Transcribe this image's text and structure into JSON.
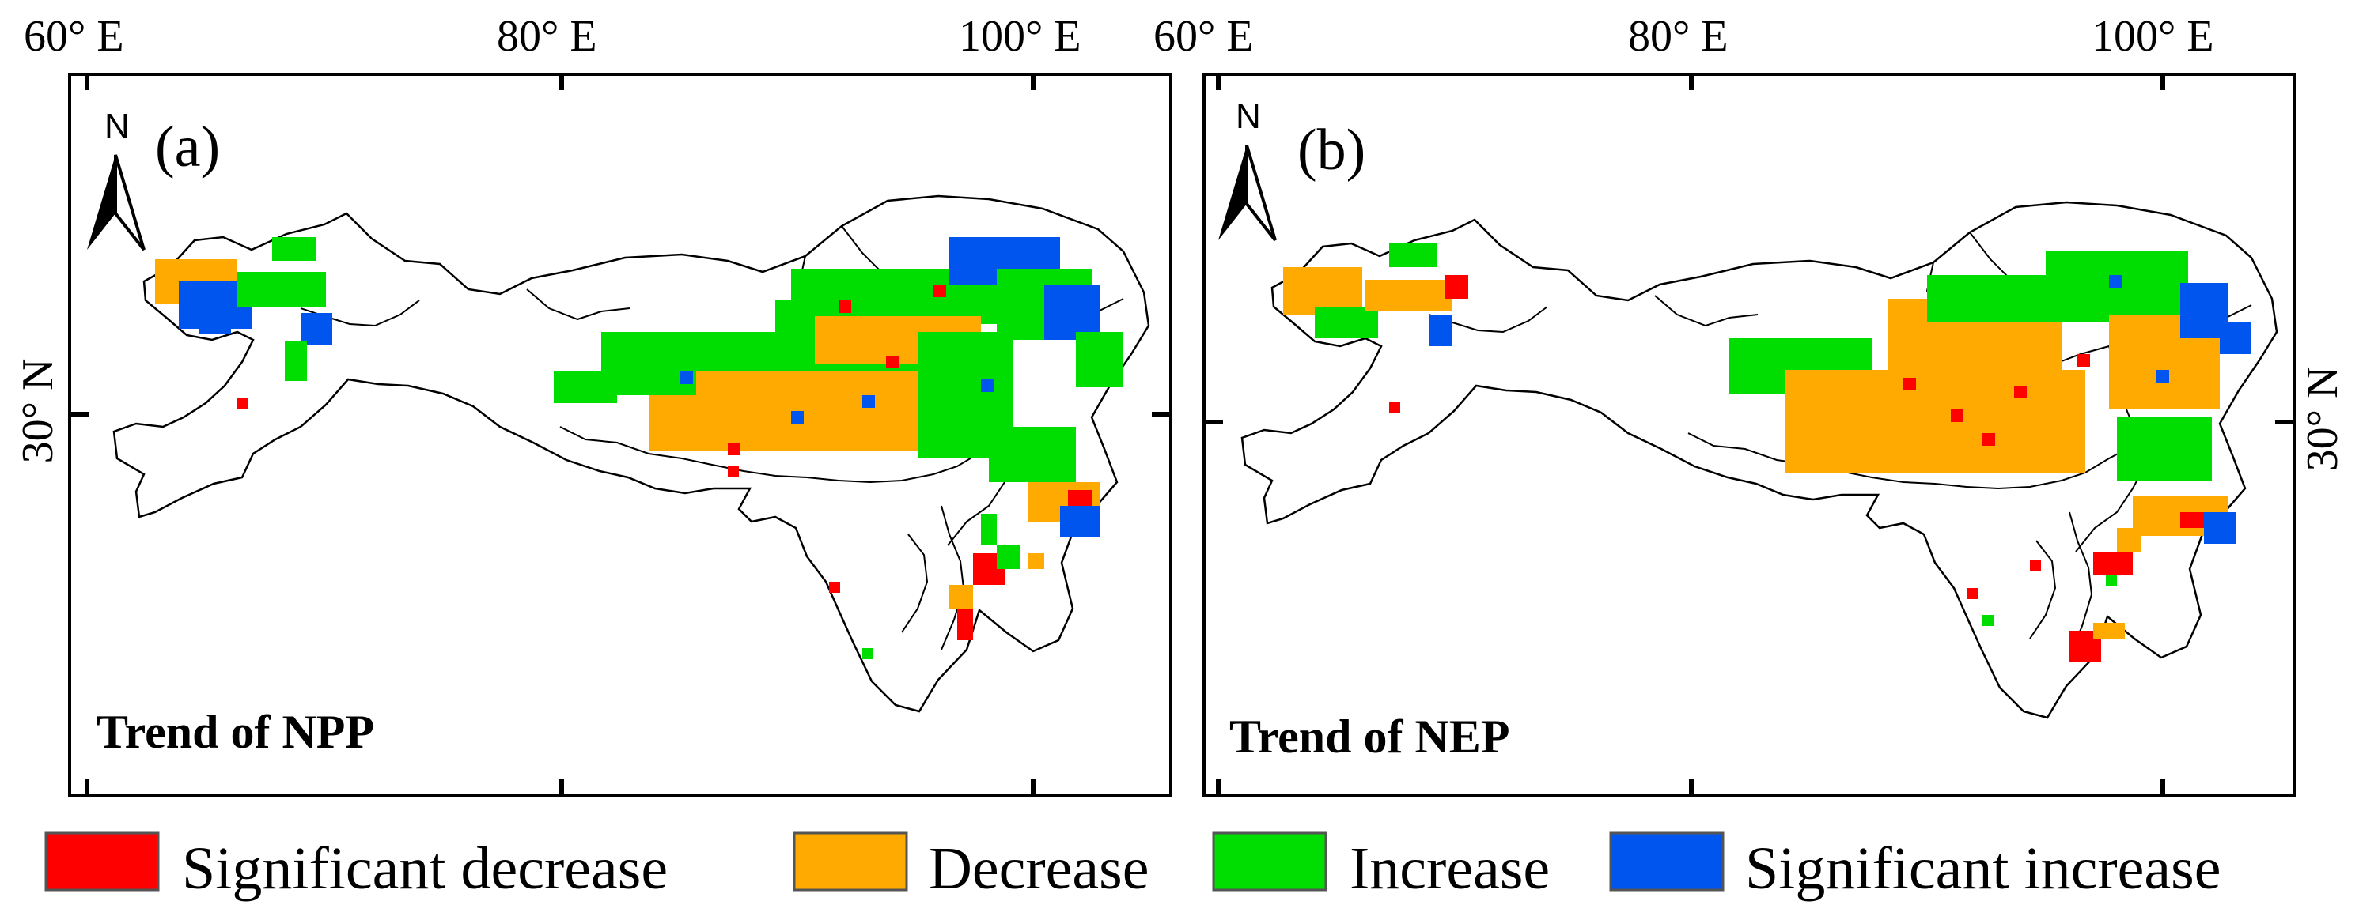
{
  "figure": {
    "panels": [
      {
        "id": "a",
        "letter": "(a)",
        "title": "Trend of NPP",
        "north_label": "N",
        "lon_labels": [
          "60° E",
          "80° E",
          "100° E"
        ],
        "lat_label": "30° N"
      },
      {
        "id": "b",
        "letter": "(b)",
        "title": "Trend of NEP",
        "north_label": "N",
        "lon_labels": [
          "60° E",
          "80° E",
          "100° E"
        ],
        "lat_label": "30° N"
      }
    ],
    "legend": [
      {
        "label": "Significant decrease",
        "color": "#ff0000"
      },
      {
        "label": "Decrease",
        "color": "#ffaa00"
      },
      {
        "label": "Increase",
        "color": "#00dd00"
      },
      {
        "label": "Significant increase",
        "color": "#0055ee"
      }
    ]
  }
}
